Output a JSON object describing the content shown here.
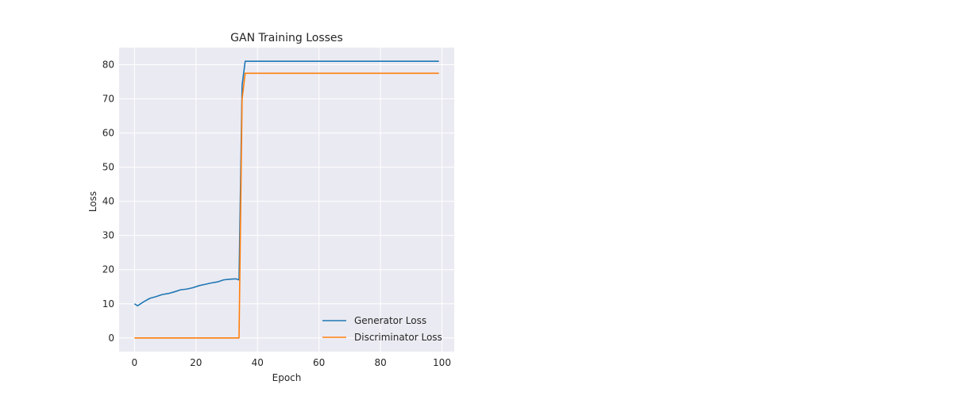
{
  "chart_data": {
    "type": "line",
    "title": "GAN Training Losses",
    "xlabel": "Epoch",
    "ylabel": "Loss",
    "xlim": [
      -5,
      104
    ],
    "ylim": [
      -4,
      85
    ],
    "x_ticks": [
      0,
      20,
      40,
      60,
      80,
      100
    ],
    "y_ticks": [
      0,
      10,
      20,
      30,
      40,
      50,
      60,
      70,
      80
    ],
    "grid": true,
    "legend_position": "lower right",
    "series": [
      {
        "name": "Generator Loss",
        "color": "#1f77b4",
        "x": [
          0,
          1,
          3,
          5,
          7,
          9,
          11,
          13,
          15,
          17,
          19,
          21,
          23,
          25,
          27,
          29,
          31,
          33,
          34,
          35,
          36,
          37,
          50,
          60,
          70,
          80,
          90,
          99
        ],
        "y": [
          10.0,
          9.4,
          10.6,
          11.6,
          12.1,
          12.7,
          13.0,
          13.5,
          14.1,
          14.3,
          14.7,
          15.3,
          15.7,
          16.1,
          16.4,
          17.0,
          17.2,
          17.3,
          17.0,
          74.0,
          81.0,
          81.0,
          81.0,
          81.0,
          81.0,
          81.0,
          81.0,
          81.0
        ]
      },
      {
        "name": "Discriminator Loss",
        "color": "#ff7f0e",
        "x": [
          0,
          10,
          20,
          30,
          34,
          35,
          36,
          37,
          50,
          60,
          70,
          80,
          90,
          99
        ],
        "y": [
          0.0,
          0.0,
          0.0,
          0.0,
          0.0,
          70.0,
          77.5,
          77.5,
          77.5,
          77.5,
          77.5,
          77.5,
          77.5,
          77.5
        ]
      }
    ]
  }
}
